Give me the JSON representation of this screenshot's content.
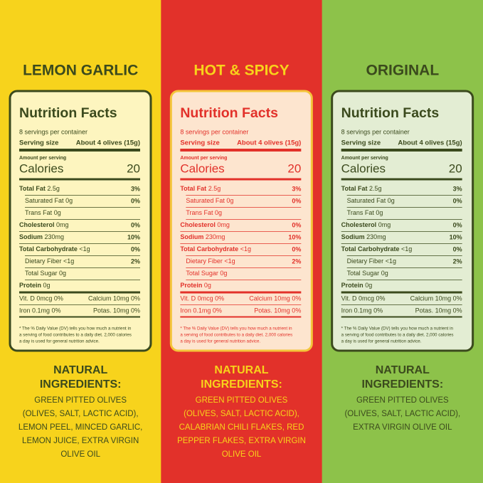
{
  "products": [
    {
      "name": "LEMON GARLIC",
      "background": "#f7d31c",
      "title_color": "#3b4a1d",
      "panel_fill": "#fdf5bf",
      "panel_border": "#3b4a1d",
      "text_color": "#3b4a1d",
      "ingredients_color": "#3b4a1d",
      "nutrition": {
        "title": "Nutrition Facts",
        "servings": "8 servings per container",
        "serving_size_label": "Serving size",
        "serving_size": "About 4 olives (15g)",
        "amount_per_serving": "Amount per serving",
        "calories_label": "Calories",
        "calories": "20",
        "rows": [
          {
            "label": "Total Fat",
            "amount": "2.5g",
            "dv": "3%",
            "bold": true
          },
          {
            "label": "Saturated Fat",
            "amount": "0g",
            "dv": "0%",
            "indent": true
          },
          {
            "label": "Trans Fat",
            "amount": "0g",
            "indent": true
          },
          {
            "label": "Cholesterol",
            "amount": "0mg",
            "dv": "0%",
            "bold": true
          },
          {
            "label": "Sodium",
            "amount": "230mg",
            "dv": "10%",
            "bold": true
          },
          {
            "label": "Total Carbohydrate",
            "amount": "<1g",
            "dv": "0%",
            "bold": true
          },
          {
            "label": "Dietary Fiber",
            "amount": "<1g",
            "dv": "2%",
            "indent": true
          },
          {
            "label": "Total Sugar",
            "amount": "0g",
            "indent": true
          },
          {
            "label": "Protein",
            "amount": "0g",
            "bold": true
          }
        ],
        "micros": [
          {
            "left": "Vit. D 0mcg 0%",
            "right": "Calcium 10mg 0%"
          },
          {
            "left": "Iron 0.1mg 0%",
            "right": "Potas. 10mg 0%"
          }
        ],
        "footnote": [
          "* The % Daily Value (DV) tells you how much a nutrient in",
          "a serving of food contributes to a daily diet. 2,000 calories",
          "a day is used for general nutrition advice."
        ]
      },
      "ingredients_heading": [
        "NATURAL",
        "INGREDIENTS:"
      ],
      "ingredients": [
        "GREEN PITTED OLIVES",
        "(OLIVES, SALT, LACTIC ACID),",
        "LEMON PEEL, MINCED GARLIC,",
        "LEMON JUICE, EXTRA VIRGIN",
        "OLIVE OIL"
      ]
    },
    {
      "name": "HOT & SPICY",
      "background": "#e2312a",
      "title_color": "#f8d31b",
      "panel_fill": "#fde5cf",
      "panel_border": "#f4c53a",
      "text_color": "#e2312a",
      "ingredients_color": "#f8d31b",
      "nutrition": {
        "title": "Nutrition Facts",
        "servings": "8 servings per container",
        "serving_size_label": "Serving size",
        "serving_size": "About 4 olives (15g)",
        "amount_per_serving": "Amount per serving",
        "calories_label": "Calories",
        "calories": "20",
        "rows": [
          {
            "label": "Total Fat",
            "amount": "2.5g",
            "dv": "3%",
            "bold": true
          },
          {
            "label": "Saturated Fat",
            "amount": "0g",
            "dv": "0%",
            "indent": true
          },
          {
            "label": "Trans Fat",
            "amount": "0g",
            "indent": true
          },
          {
            "label": "Cholesterol",
            "amount": "0mg",
            "dv": "0%",
            "bold": true
          },
          {
            "label": "Sodium",
            "amount": "230mg",
            "dv": "10%",
            "bold": true
          },
          {
            "label": "Total Carbohydrate",
            "amount": "<1g",
            "dv": "0%",
            "bold": true
          },
          {
            "label": "Dietary Fiber",
            "amount": "<1g",
            "dv": "2%",
            "indent": true
          },
          {
            "label": "Total Sugar",
            "amount": "0g",
            "indent": true
          },
          {
            "label": "Protein",
            "amount": "0g",
            "bold": true
          }
        ],
        "micros": [
          {
            "left": "Vit. D 0mcg 0%",
            "right": "Calcium 10mg 0%"
          },
          {
            "left": "Iron 0.1mg 0%",
            "right": "Potas. 10mg 0%"
          }
        ],
        "footnote": [
          "* The % Daily Value (DV) tells you how much a nutrient in",
          "a serving of food contributes to a daily diet. 2,000 calories",
          "a day is used for general nutrition advice."
        ]
      },
      "ingredients_heading": [
        "NATURAL",
        "INGREDIENTS:"
      ],
      "ingredients": [
        "GREEN PITTED OLIVES",
        "(OLIVES, SALT, LACTIC ACID),",
        "CALABRIAN CHILI FLAKES, RED",
        "PEPPER FLAKES, EXTRA VIRGIN",
        "OLIVE OIL"
      ]
    },
    {
      "name": "ORIGINAL",
      "background": "#8dc24a",
      "title_color": "#3b4a1d",
      "panel_fill": "#e3edd3",
      "panel_border": "#3b4a1d",
      "text_color": "#3b4a1d",
      "ingredients_color": "#3b4a1d",
      "nutrition": {
        "title": "Nutrition Facts",
        "servings": "8 servings per container",
        "serving_size_label": "Serving size",
        "serving_size": "About 4 olives (15g)",
        "amount_per_serving": "Amount per serving",
        "calories_label": "Calories",
        "calories": "20",
        "rows": [
          {
            "label": "Total Fat",
            "amount": "2.5g",
            "dv": "3%",
            "bold": true
          },
          {
            "label": "Saturated Fat",
            "amount": "0g",
            "dv": "0%",
            "indent": true
          },
          {
            "label": "Trans Fat",
            "amount": "0g",
            "indent": true
          },
          {
            "label": "Cholesterol",
            "amount": "0mg",
            "dv": "0%",
            "bold": true
          },
          {
            "label": "Sodium",
            "amount": "230mg",
            "dv": "10%",
            "bold": true
          },
          {
            "label": "Total Carbohydrate",
            "amount": "<1g",
            "dv": "0%",
            "bold": true
          },
          {
            "label": "Dietary Fiber",
            "amount": "<1g",
            "dv": "2%",
            "indent": true
          },
          {
            "label": "Total Sugar",
            "amount": "0g",
            "indent": true
          },
          {
            "label": "Protein",
            "amount": "0g",
            "bold": true
          }
        ],
        "micros": [
          {
            "left": "Vit. D 0mcg 0%",
            "right": "Calcium 10mg 0%"
          },
          {
            "left": "Iron 0.1mg 0%",
            "right": "Potas. 10mg 0%"
          }
        ],
        "footnote": [
          "* The % Daily Value (DV) tells you how much a nutrient in",
          "a serving of food contributes to a daily diet. 2,000 calories",
          "a day is used for general nutrition advice."
        ]
      },
      "ingredients_heading": [
        "NATURAL",
        "INGREDIENTS:"
      ],
      "ingredients": [
        "GREEN PITTED OLIVES",
        "(OLIVES, SALT, LACTIC ACID),",
        "EXTRA VIRGIN OLIVE OIL"
      ]
    }
  ]
}
